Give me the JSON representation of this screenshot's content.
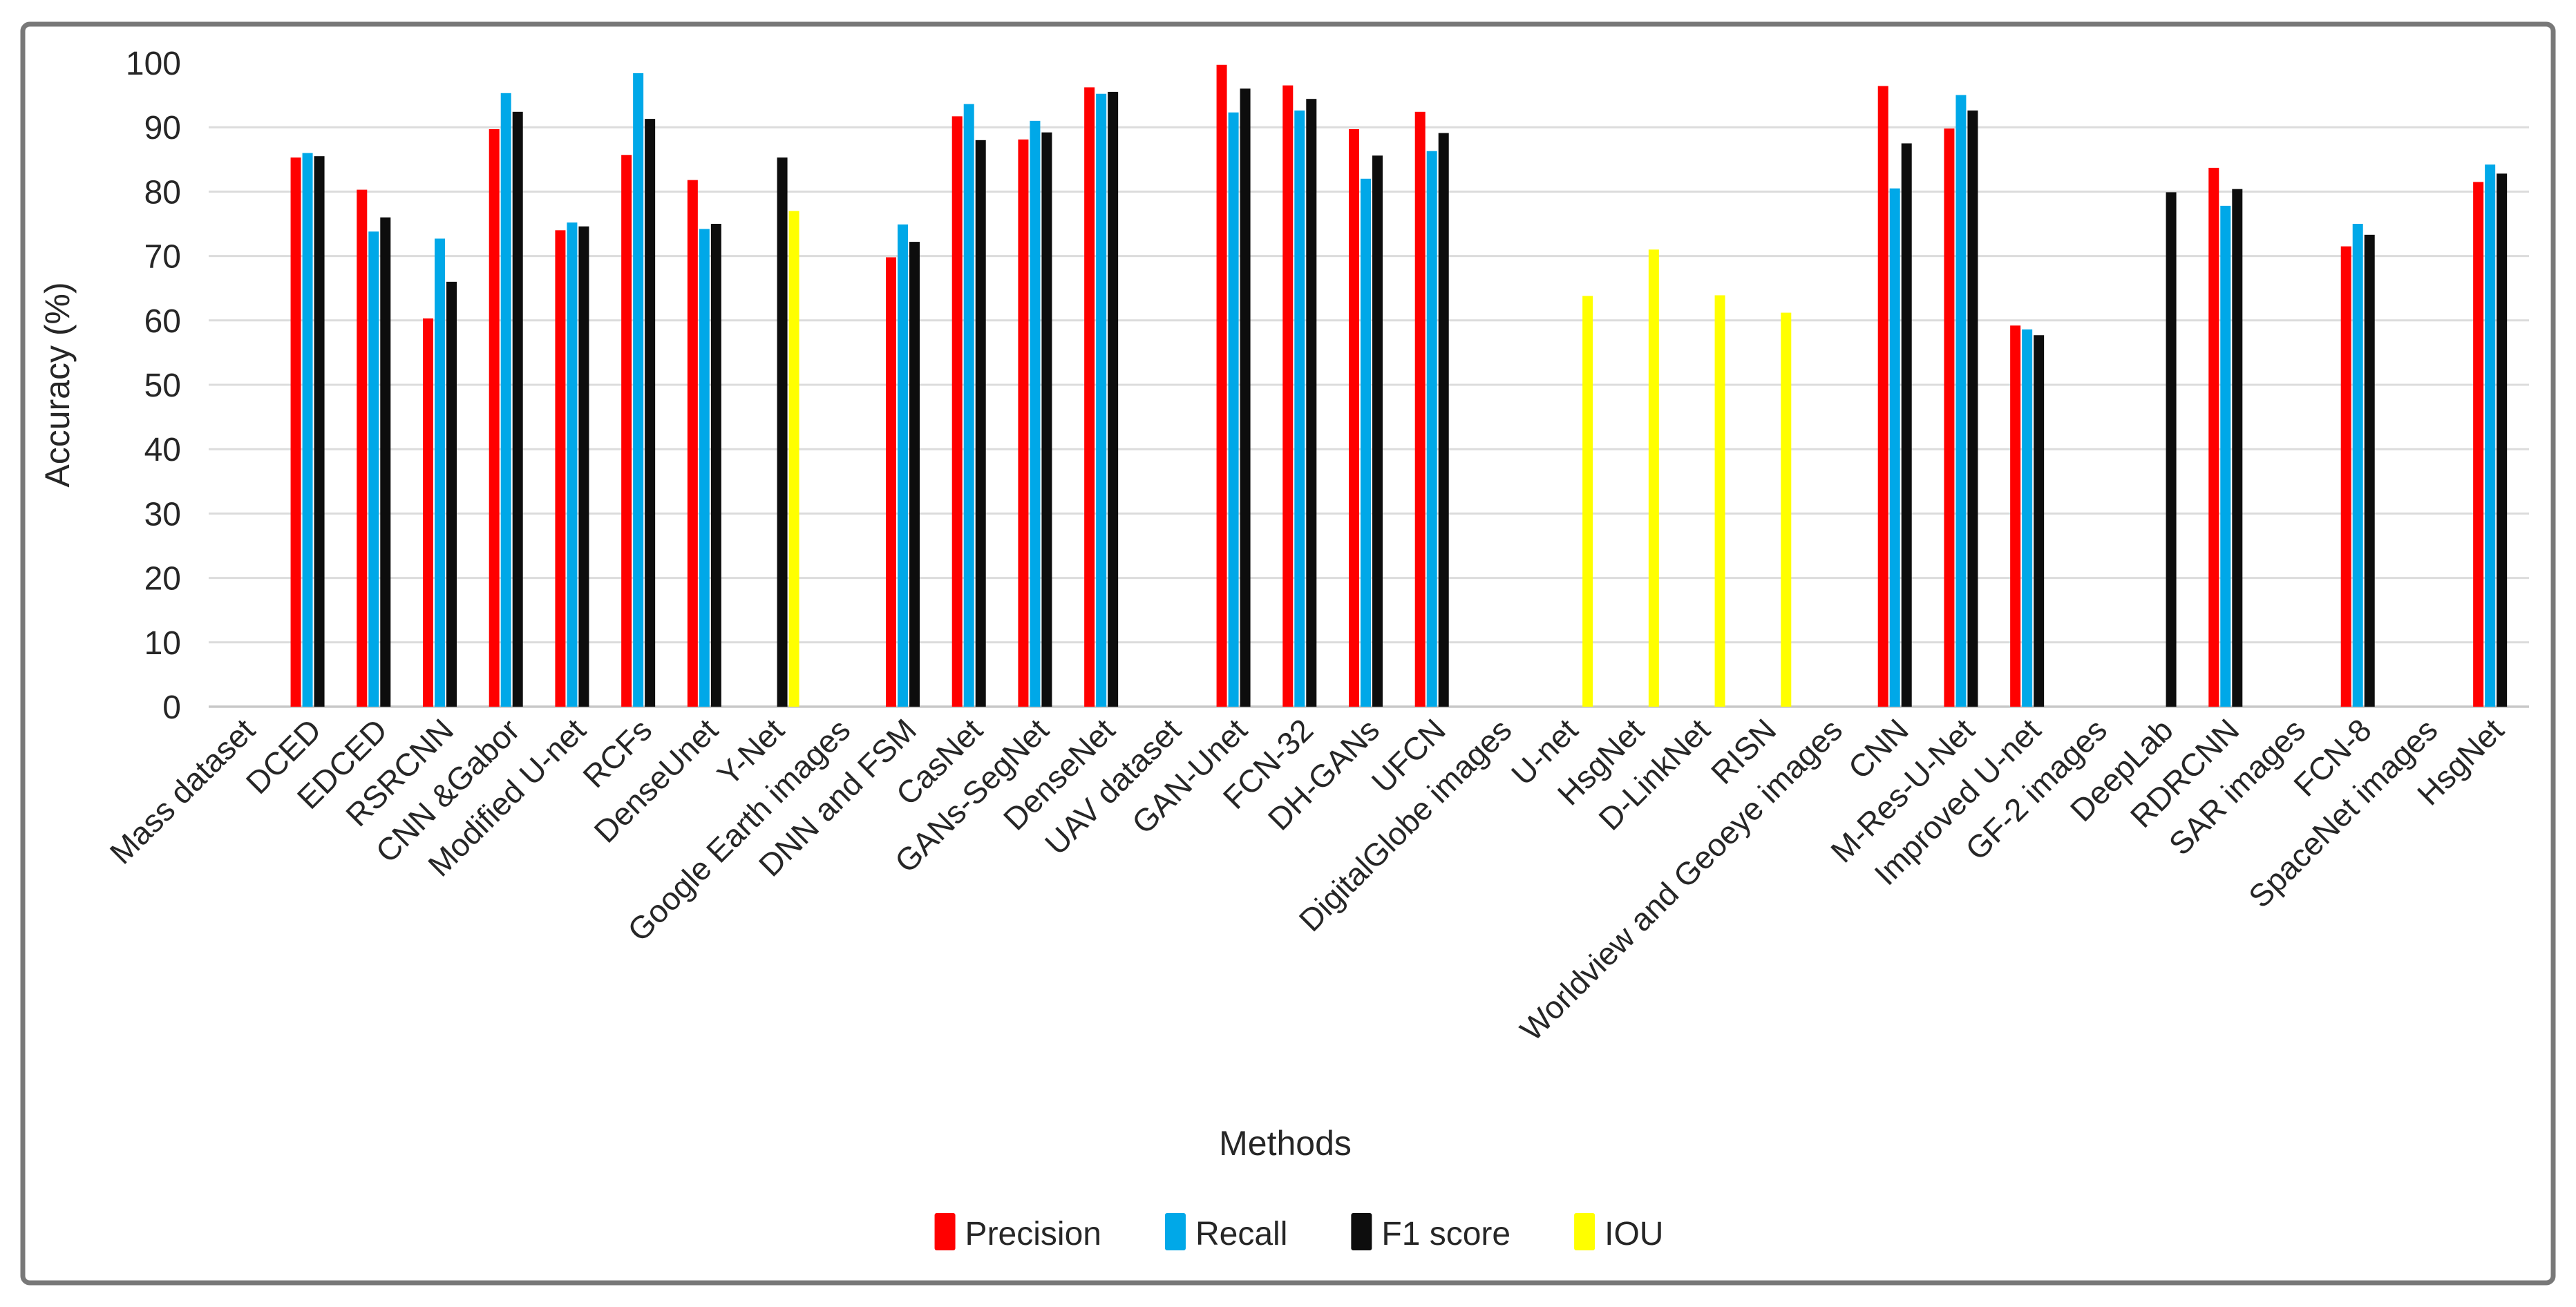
{
  "figure": {
    "xlabel": "Methods",
    "ylabel": "Accuracy (%)"
  },
  "chart_data": {
    "type": "bar",
    "title": "",
    "xlabel": "Methods",
    "ylabel": "Accuracy (%)",
    "ylim": [
      0,
      100
    ],
    "yticks": [
      0,
      10,
      20,
      30,
      40,
      50,
      60,
      70,
      80,
      90,
      100
    ],
    "grid": true,
    "legend_position": "bottom",
    "text_color": "#262626",
    "gridline_color": "#dcdcdc",
    "axisline_color": "#c8c8c8",
    "frame_color": "#787878",
    "series": [
      {
        "key": "precision",
        "name": "Precision",
        "color": "#ff0000"
      },
      {
        "key": "recall",
        "name": "Recall",
        "color": "#00a8e8"
      },
      {
        "key": "f1",
        "name": "F1 score",
        "color": "#0d0d0d"
      },
      {
        "key": "iou",
        "name": "IOU",
        "color": "#ffff00"
      }
    ],
    "categories": [
      {
        "label": "Mass dataset",
        "precision": null,
        "recall": null,
        "f1": null,
        "iou": null
      },
      {
        "label": "DCED",
        "precision": 85.3,
        "recall": 86.0,
        "f1": 85.5,
        "iou": null
      },
      {
        "label": "EDCED",
        "precision": 80.3,
        "recall": 73.8,
        "f1": 76.0,
        "iou": null
      },
      {
        "label": "RSRCNN",
        "precision": 60.3,
        "recall": 72.7,
        "f1": 66.0,
        "iou": null
      },
      {
        "label": "CNN &Gabor",
        "precision": 89.7,
        "recall": 95.3,
        "f1": 92.4,
        "iou": null
      },
      {
        "label": "Modified U-net",
        "precision": 74.0,
        "recall": 75.2,
        "f1": 74.6,
        "iou": null
      },
      {
        "label": "RCFs",
        "precision": 85.7,
        "recall": 98.4,
        "f1": 91.3,
        "iou": null
      },
      {
        "label": "DenseUnet",
        "precision": 81.8,
        "recall": 74.2,
        "f1": 75.0,
        "iou": null
      },
      {
        "label": "Y-Net",
        "precision": null,
        "recall": null,
        "f1": 85.3,
        "iou": 77.0
      },
      {
        "label": "Google Earth images",
        "precision": null,
        "recall": null,
        "f1": null,
        "iou": null
      },
      {
        "label": "DNN and FSM",
        "precision": 69.8,
        "recall": 74.9,
        "f1": 72.2,
        "iou": null
      },
      {
        "label": "CasNet",
        "precision": 91.7,
        "recall": 93.6,
        "f1": 88.0,
        "iou": null
      },
      {
        "label": "GANs-SegNet",
        "precision": 88.1,
        "recall": 91.0,
        "f1": 89.2,
        "iou": null
      },
      {
        "label": "DenseNet",
        "precision": 96.2,
        "recall": 95.2,
        "f1": 95.5,
        "iou": null
      },
      {
        "label": "UAV dataset",
        "precision": null,
        "recall": null,
        "f1": null,
        "iou": null
      },
      {
        "label": "GAN-Unet",
        "precision": 99.7,
        "recall": 92.3,
        "f1": 96.0,
        "iou": null
      },
      {
        "label": "FCN-32",
        "precision": 96.5,
        "recall": 92.6,
        "f1": 94.4,
        "iou": null
      },
      {
        "label": "DH-GANs",
        "precision": 89.7,
        "recall": 82.0,
        "f1": 85.6,
        "iou": null
      },
      {
        "label": "UFCN",
        "precision": 92.4,
        "recall": 86.3,
        "f1": 89.1,
        "iou": null
      },
      {
        "label": "DigitalGlobe images",
        "precision": null,
        "recall": null,
        "f1": null,
        "iou": null
      },
      {
        "label": "U-net",
        "precision": null,
        "recall": null,
        "f1": null,
        "iou": 63.8
      },
      {
        "label": "HsgNet",
        "precision": null,
        "recall": null,
        "f1": null,
        "iou": 71.0
      },
      {
        "label": "D-LinkNet",
        "precision": null,
        "recall": null,
        "f1": null,
        "iou": 63.9
      },
      {
        "label": "RISN",
        "precision": null,
        "recall": null,
        "f1": null,
        "iou": 61.2
      },
      {
        "label": "Worldview and Geoeye images",
        "precision": null,
        "recall": null,
        "f1": null,
        "iou": null
      },
      {
        "label": "CNN",
        "precision": 96.4,
        "recall": 80.5,
        "f1": 87.5,
        "iou": null
      },
      {
        "label": "M-Res-U-Net",
        "precision": 89.8,
        "recall": 95.0,
        "f1": 92.6,
        "iou": null
      },
      {
        "label": "Improved U-net",
        "precision": 59.2,
        "recall": 58.6,
        "f1": 57.7,
        "iou": null
      },
      {
        "label": "GF-2 images",
        "precision": null,
        "recall": null,
        "f1": null,
        "iou": null
      },
      {
        "label": "DeepLab",
        "precision": null,
        "recall": null,
        "f1": 79.9,
        "iou": null
      },
      {
        "label": "RDRCNN",
        "precision": 83.7,
        "recall": 77.8,
        "f1": 80.4,
        "iou": null
      },
      {
        "label": "SAR images",
        "precision": null,
        "recall": null,
        "f1": null,
        "iou": null
      },
      {
        "label": "FCN-8",
        "precision": 71.5,
        "recall": 75.0,
        "f1": 73.3,
        "iou": null
      },
      {
        "label": "SpaceNet images",
        "precision": null,
        "recall": null,
        "f1": null,
        "iou": null
      },
      {
        "label": "HsgNet",
        "precision": 81.5,
        "recall": 84.2,
        "f1": 82.8,
        "iou": null
      }
    ]
  }
}
